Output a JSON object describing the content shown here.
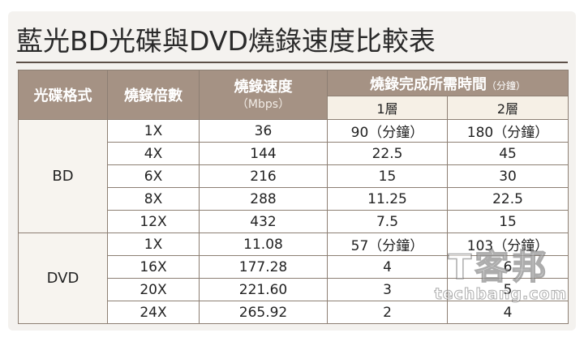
{
  "title": "藍光BD光碟與DVD燒錄速度比較表",
  "headers": {
    "format": "光碟格式",
    "multiplier": "燒錄倍數",
    "speed": "燒錄速度",
    "speed_unit": "（Mbps）",
    "time": "燒錄完成所需時間",
    "time_unit": "（分鐘）",
    "layer1": "1層",
    "layer2": "2層"
  },
  "groups": [
    {
      "format": "BD",
      "rows": [
        {
          "multiplier": "1X",
          "speed": "36",
          "layer1": "90（分鐘）",
          "layer2": "180（分鐘）"
        },
        {
          "multiplier": "4X",
          "speed": "144",
          "layer1": "22.5",
          "layer2": "45"
        },
        {
          "multiplier": "6X",
          "speed": "216",
          "layer1": "15",
          "layer2": "30"
        },
        {
          "multiplier": "8X",
          "speed": "288",
          "layer1": "11.25",
          "layer2": "22.5"
        },
        {
          "multiplier": "12X",
          "speed": "432",
          "layer1": "7.5",
          "layer2": "15"
        }
      ]
    },
    {
      "format": "DVD",
      "rows": [
        {
          "multiplier": "1X",
          "speed": "11.08",
          "layer1": "57（分鐘）",
          "layer2": "103（分鐘）"
        },
        {
          "multiplier": "16X",
          "speed": "177.28",
          "layer1": "4",
          "layer2": "6"
        },
        {
          "multiplier": "20X",
          "speed": "221.60",
          "layer1": "3",
          "layer2": "5"
        },
        {
          "multiplier": "24X",
          "speed": "265.92",
          "layer1": "2",
          "layer2": "4"
        }
      ]
    }
  ],
  "watermark": {
    "top": "T客邦",
    "bottom": "techbang.com"
  }
}
